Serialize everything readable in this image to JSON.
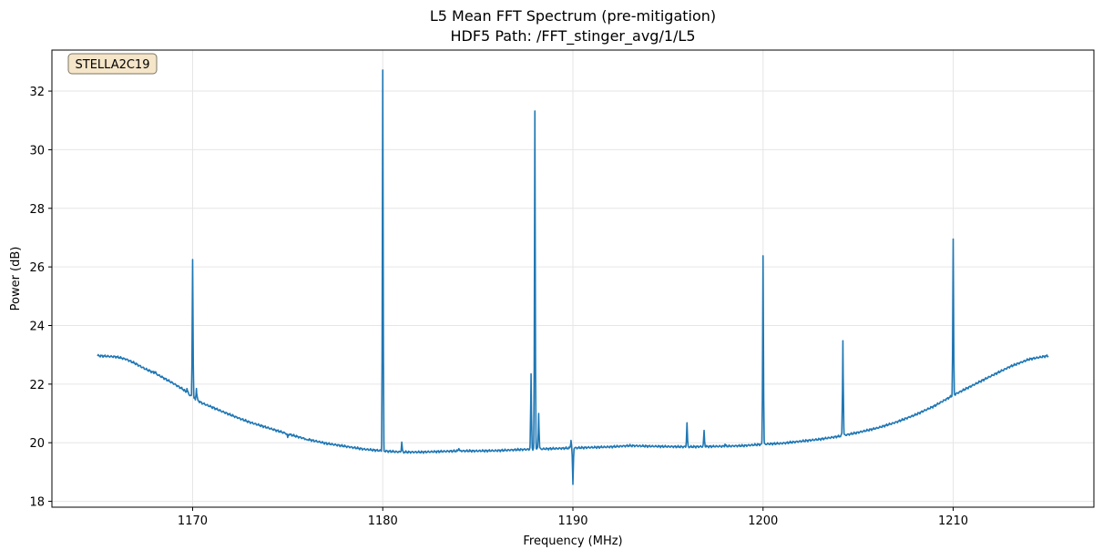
{
  "chart_data": {
    "type": "line",
    "title": "L5 Mean FFT Spectrum (pre-mitigation)",
    "subtitle": "HDF5 Path: /FFT_stinger_avg/1/L5",
    "xlabel": "Frequency (MHz)",
    "ylabel": "Power (dB)",
    "xlim": [
      1162.6,
      1217.4
    ],
    "ylim": [
      17.8,
      33.4
    ],
    "xticks": [
      1170,
      1180,
      1190,
      1200,
      1210
    ],
    "yticks": [
      18,
      20,
      22,
      24,
      26,
      28,
      30,
      32
    ],
    "grid": true,
    "annotation": "STELLA2C19",
    "series_color": "#1f77b4",
    "baseline": [
      [
        1165.0,
        22.97
      ],
      [
        1166.0,
        22.93
      ],
      [
        1166.5,
        22.85
      ],
      [
        1167.0,
        22.7
      ],
      [
        1167.5,
        22.52
      ],
      [
        1168.0,
        22.38
      ],
      [
        1168.5,
        22.2
      ],
      [
        1169.0,
        22.02
      ],
      [
        1169.5,
        21.82
      ],
      [
        1170.0,
        21.55
      ],
      [
        1170.5,
        21.35
      ],
      [
        1171.0,
        21.22
      ],
      [
        1171.5,
        21.08
      ],
      [
        1172.0,
        20.95
      ],
      [
        1172.5,
        20.82
      ],
      [
        1173.0,
        20.7
      ],
      [
        1174.0,
        20.5
      ],
      [
        1175.0,
        20.3
      ],
      [
        1176.0,
        20.12
      ],
      [
        1177.0,
        19.98
      ],
      [
        1178.0,
        19.88
      ],
      [
        1179.0,
        19.78
      ],
      [
        1180.0,
        19.72
      ],
      [
        1181.0,
        19.68
      ],
      [
        1182.0,
        19.68
      ],
      [
        1183.0,
        19.7
      ],
      [
        1184.0,
        19.72
      ],
      [
        1185.0,
        19.72
      ],
      [
        1186.0,
        19.73
      ],
      [
        1187.0,
        19.76
      ],
      [
        1188.0,
        19.78
      ],
      [
        1189.0,
        19.8
      ],
      [
        1190.0,
        19.82
      ],
      [
        1191.0,
        19.84
      ],
      [
        1192.0,
        19.86
      ],
      [
        1193.0,
        19.9
      ],
      [
        1194.0,
        19.88
      ],
      [
        1195.0,
        19.87
      ],
      [
        1196.0,
        19.86
      ],
      [
        1197.0,
        19.87
      ],
      [
        1198.0,
        19.88
      ],
      [
        1199.0,
        19.9
      ],
      [
        1200.0,
        19.95
      ],
      [
        1201.0,
        19.98
      ],
      [
        1202.0,
        20.05
      ],
      [
        1203.0,
        20.12
      ],
      [
        1204.0,
        20.22
      ],
      [
        1205.0,
        20.35
      ],
      [
        1206.0,
        20.5
      ],
      [
        1207.0,
        20.7
      ],
      [
        1208.0,
        20.95
      ],
      [
        1209.0,
        21.25
      ],
      [
        1210.0,
        21.62
      ],
      [
        1211.0,
        21.95
      ],
      [
        1212.0,
        22.28
      ],
      [
        1213.0,
        22.6
      ],
      [
        1214.0,
        22.85
      ],
      [
        1215.0,
        22.97
      ]
    ],
    "spikes": [
      {
        "x": 1168.0,
        "y": 22.42
      },
      {
        "x": 1169.7,
        "y": 21.85
      },
      {
        "x": 1170.0,
        "y": 26.25
      },
      {
        "x": 1170.2,
        "y": 21.85
      },
      {
        "x": 1175.0,
        "y": 20.18
      },
      {
        "x": 1176.0,
        "y": 20.1
      },
      {
        "x": 1180.0,
        "y": 32.72
      },
      {
        "x": 1181.0,
        "y": 20.02
      },
      {
        "x": 1184.0,
        "y": 19.8
      },
      {
        "x": 1187.8,
        "y": 22.35
      },
      {
        "x": 1188.0,
        "y": 31.32
      },
      {
        "x": 1188.2,
        "y": 21.0
      },
      {
        "x": 1189.9,
        "y": 20.08
      },
      {
        "x": 1190.0,
        "y": 18.58
      },
      {
        "x": 1196.0,
        "y": 20.68
      },
      {
        "x": 1196.9,
        "y": 20.42
      },
      {
        "x": 1198.0,
        "y": 19.95
      },
      {
        "x": 1200.0,
        "y": 26.38
      },
      {
        "x": 1204.2,
        "y": 23.48
      },
      {
        "x": 1210.0,
        "y": 26.95
      }
    ]
  }
}
